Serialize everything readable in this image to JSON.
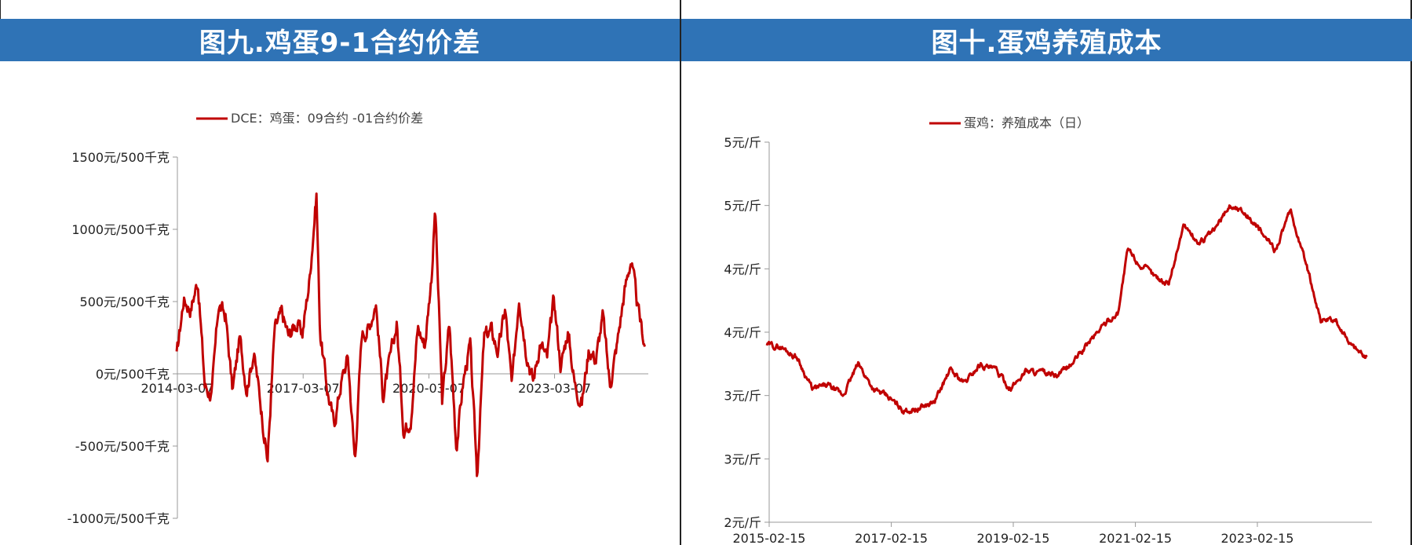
{
  "left_panel": {
    "title": "图九.鸡蛋9-1合约价差"
  },
  "right_panel": {
    "title": "图十.蛋鸡养殖成本"
  },
  "colors": {
    "header": "#2f73b6",
    "series": "#c00000"
  },
  "chart_data": [
    {
      "type": "line",
      "title": "图九.鸡蛋9-1合约价差",
      "legend": [
        "DCE：鸡蛋：09合约 -01合约价差"
      ],
      "legend_position": "top-center",
      "y_tick_labels": [
        "1500元/500千克",
        "1000元/500千克",
        "500元/500千克",
        "0元/500千克",
        "-500元/500千克",
        "-1000元/500千克"
      ],
      "y_ticks": [
        1500,
        1000,
        500,
        0,
        -500,
        -1000
      ],
      "x_tick_labels": [
        "2014-03-07",
        "2017-03-07",
        "2020-03-07",
        "2023-03-07"
      ],
      "ylim": [
        -1000,
        1500
      ],
      "xlim": [
        "2014-03-07",
        "2025-06-01"
      ],
      "grid": false,
      "series": [
        {
          "name": "DCE：鸡蛋：09合约 -01合约价差",
          "color": "#c00000",
          "x": [
            "2014-03",
            "2014-05",
            "2014-07",
            "2014-09",
            "2014-11",
            "2015-01",
            "2015-03",
            "2015-05",
            "2015-07",
            "2015-09",
            "2015-11",
            "2016-01",
            "2016-03",
            "2016-05",
            "2016-07",
            "2016-09",
            "2016-11",
            "2017-01",
            "2017-03",
            "2017-05",
            "2017-07",
            "2017-08",
            "2017-10",
            "2017-12",
            "2018-02",
            "2018-04",
            "2018-06",
            "2018-08",
            "2018-10",
            "2018-12",
            "2019-02",
            "2019-04",
            "2019-06",
            "2019-08",
            "2019-10",
            "2019-12",
            "2020-02",
            "2020-04",
            "2020-05",
            "2020-07",
            "2020-09",
            "2020-11",
            "2021-01",
            "2021-03",
            "2021-05",
            "2021-07",
            "2021-09",
            "2021-11",
            "2022-01",
            "2022-03",
            "2022-05",
            "2022-07",
            "2022-09",
            "2022-11",
            "2023-01",
            "2023-03",
            "2023-05",
            "2023-07",
            "2023-09",
            "2023-11",
            "2024-01",
            "2024-03",
            "2024-05",
            "2024-07",
            "2024-09",
            "2024-11",
            "2025-01",
            "2025-03",
            "2025-05"
          ],
          "values": [
            120,
            520,
            450,
            650,
            -80,
            -150,
            480,
            400,
            -120,
            250,
            -100,
            150,
            -200,
            -600,
            300,
            420,
            260,
            350,
            280,
            650,
            1250,
            300,
            -100,
            -350,
            -60,
            120,
            -600,
            280,
            320,
            500,
            -150,
            80,
            350,
            -400,
            -300,
            320,
            200,
            700,
            1150,
            -200,
            350,
            -500,
            -50,
            200,
            -700,
            250,
            300,
            150,
            450,
            -100,
            550,
            180,
            -50,
            220,
            100,
            520,
            50,
            300,
            -80,
            -200,
            180,
            100,
            400,
            -80,
            200,
            550,
            800,
            450,
            200
          ]
        }
      ]
    },
    {
      "type": "line",
      "title": "图十.蛋鸡养殖成本",
      "legend": [
        "蛋鸡：养殖成本（日）"
      ],
      "legend_position": "top-center",
      "y_tick_labels": [
        "5元/斤",
        "5元/斤",
        "4元/斤",
        "4元/斤",
        "3元/斤",
        "3元/斤",
        "2元/斤"
      ],
      "y_ticks": [
        5.0,
        4.5,
        4.0,
        3.5,
        3.0,
        2.5,
        2.0
      ],
      "x_tick_labels": [
        "2015-02-15",
        "2017-02-15",
        "2019-02-15",
        "2021-02-15",
        "2023-02-15"
      ],
      "ylim": [
        2.0,
        5.0
      ],
      "xlim": [
        "2015-02-15",
        "2025-01-01"
      ],
      "grid": false,
      "series": [
        {
          "name": "蛋鸡：养殖成本（日）",
          "color": "#c00000",
          "x": [
            "2015-02",
            "2015-05",
            "2015-08",
            "2015-11",
            "2016-02",
            "2016-05",
            "2016-08",
            "2016-11",
            "2017-02",
            "2017-05",
            "2017-08",
            "2017-11",
            "2018-02",
            "2018-05",
            "2018-08",
            "2018-11",
            "2019-02",
            "2019-05",
            "2019-08",
            "2019-11",
            "2020-02",
            "2020-05",
            "2020-08",
            "2020-11",
            "2021-01",
            "2021-03",
            "2021-06",
            "2021-09",
            "2021-12",
            "2022-03",
            "2022-06",
            "2022-09",
            "2022-12",
            "2023-03",
            "2023-06",
            "2023-09",
            "2023-12",
            "2024-03",
            "2024-06",
            "2024-09",
            "2024-12"
          ],
          "values": [
            3.4,
            3.38,
            3.3,
            3.05,
            3.08,
            3.0,
            3.25,
            3.05,
            2.98,
            2.88,
            2.9,
            2.95,
            3.2,
            3.1,
            3.25,
            3.2,
            3.05,
            3.2,
            3.18,
            3.15,
            3.25,
            3.4,
            3.55,
            3.65,
            4.15,
            4.05,
            3.95,
            3.88,
            4.35,
            4.2,
            4.3,
            4.5,
            4.45,
            4.3,
            4.15,
            4.45,
            4.05,
            3.6,
            3.58,
            3.4,
            3.3
          ]
        }
      ]
    }
  ]
}
